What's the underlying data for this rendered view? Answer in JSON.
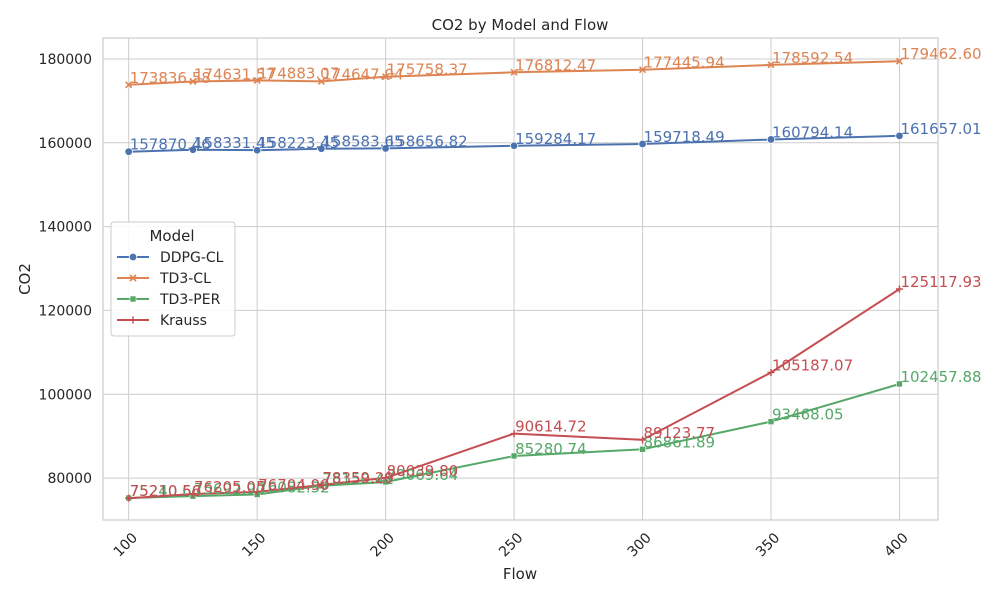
{
  "chart_data": {
    "type": "line",
    "title": "CO2 by Model and Flow",
    "xlabel": "Flow",
    "ylabel": "CO2",
    "xlim": [
      90,
      415
    ],
    "ylim": [
      70000,
      185000
    ],
    "x_ticks": [
      100,
      150,
      200,
      250,
      300,
      350,
      400
    ],
    "y_ticks": [
      80000,
      100000,
      120000,
      140000,
      160000,
      180000
    ],
    "grid": true,
    "legend": {
      "title": "Model",
      "placement": "center-left"
    },
    "x": [
      100,
      125,
      150,
      175,
      200,
      250,
      300,
      350,
      400
    ],
    "series": [
      {
        "name": "DDPG-CL",
        "color": "#4c72b0",
        "marker": "circle",
        "values": [
          157870.46,
          158331.45,
          158223.45,
          158583.65,
          158656.82,
          159284.17,
          159718.49,
          160794.14,
          161657.01
        ],
        "labels": [
          "157870.46",
          "158331.45",
          "158223.45",
          "158583.65",
          "158656.82",
          "159284.17",
          "159718.49",
          "160794.14",
          "161657.01"
        ]
      },
      {
        "name": "TD3-CL",
        "color": "#dd8452",
        "marker": "x",
        "values": [
          173836.58,
          174631.57,
          174883.07,
          174647.04,
          175758.37,
          176812.47,
          177445.94,
          178592.54,
          179462.6
        ],
        "labels": [
          "173836.58",
          "174631.57",
          "174883.07",
          "174647.04",
          "175758.37",
          "176812.47",
          "177445.94",
          "178592.54",
          "179462.60"
        ]
      },
      {
        "name": "TD3-PER",
        "color": "#55a868",
        "marker": "square",
        "values": [
          75240.6,
          75692.9,
          76082.52,
          78150.41,
          79069.64,
          85280.74,
          86861.89,
          93468.05,
          102457.88
        ],
        "labels": [
          "75240.60",
          "75692.90",
          "76082.52",
          "78150.41",
          "79069.64",
          "85280.74",
          "86861.89",
          "93468.05",
          "102457.88"
        ]
      },
      {
        "name": "Krauss",
        "color": "#c44e52",
        "marker": "plus",
        "values": [
          75210.56,
          76205.05,
          76704.9,
          78359.29,
          80039.8,
          90614.72,
          89123.77,
          105187.07,
          125117.93
        ],
        "labels": [
          "75210.56",
          "76205.05",
          "76704.90",
          "78359.29",
          "80039.80",
          "90614.72",
          "89123.77",
          "105187.07",
          "125117.93"
        ]
      }
    ]
  }
}
